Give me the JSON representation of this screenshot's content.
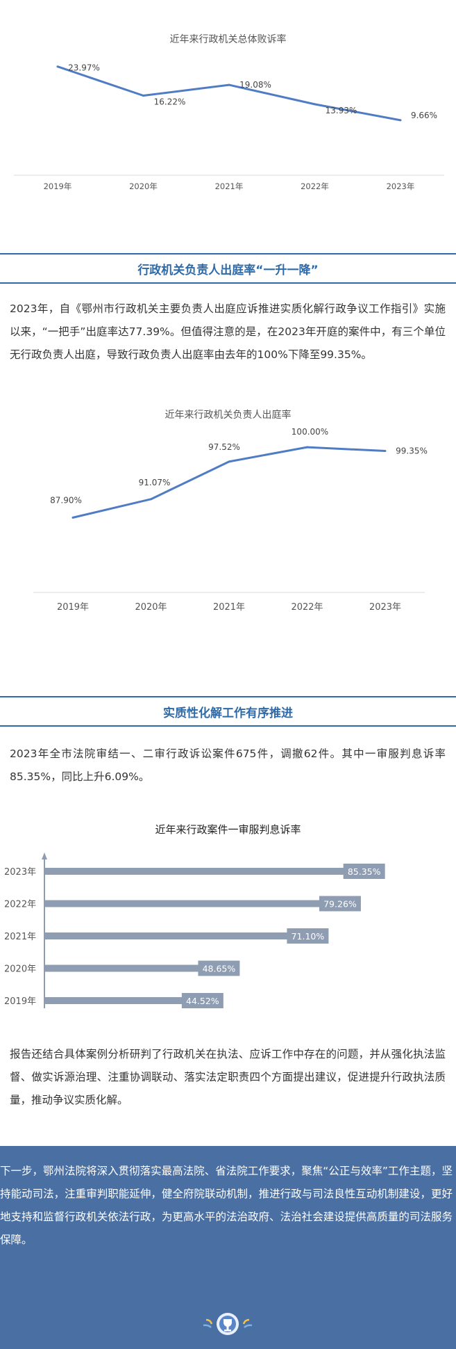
{
  "chart1": {
    "title": "近年来行政机关总体败诉率",
    "chart_data": {
      "type": "line",
      "title": "近年来行政机关总体败诉率",
      "categories": [
        "2019年",
        "2020年",
        "2021年",
        "2022年",
        "2023年"
      ],
      "values": [
        23.97,
        16.22,
        19.08,
        13.93,
        9.66
      ],
      "value_labels": [
        "23.97%",
        "16.22%",
        "19.08%",
        "13.93%",
        "9.66%"
      ],
      "ylim": [
        5,
        28
      ],
      "color": "#4f7cc4"
    }
  },
  "section1": {
    "heading": "行政机关负责人出庭率“一升一降”",
    "paragraph": "2023年，自《鄂州市行政机关主要负责人出庭应诉推进实质化解行政争议工作指引》实施以来，“一把手”出庭率达77.39%。但值得注意的是，在2023年开庭的案件中，有三个单位无行政负责人出庭，导致行政负责人出庭率由去年的100%下降至99.35%。"
  },
  "chart2": {
    "title": "近年来行政机关负责人出庭率",
    "chart_data": {
      "type": "line",
      "title": "近年来行政机关负责人出庭率",
      "categories": [
        "2019年",
        "2020年",
        "2021年",
        "2022年",
        "2023年"
      ],
      "values": [
        87.9,
        91.07,
        97.52,
        100.0,
        99.35
      ],
      "value_labels": [
        "87.90%",
        "91.07%",
        "97.52%",
        "100.00%",
        "99.35%"
      ],
      "ylim": [
        84,
        103
      ],
      "color": "#4f7cc4"
    }
  },
  "section2": {
    "heading": "实质性化解工作有序推进",
    "paragraph": "2023年全市法院审结一、二审行政诉讼案件675件，调撤62件。其中一审服判息诉率85.35%，同比上升6.09%。"
  },
  "chart3": {
    "title": "近年来行政案件一审服判息诉率",
    "chart_data": {
      "type": "bar",
      "orientation": "horizontal",
      "title": "近年来行政案件一审服判息诉率",
      "categories": [
        "2023年",
        "2022年",
        "2021年",
        "2020年",
        "2019年"
      ],
      "values": [
        85.35,
        79.26,
        71.1,
        48.65,
        44.52
      ],
      "value_labels": [
        "85.35%",
        "79.26%",
        "71.10%",
        "48.65%",
        "44.52%"
      ],
      "xlim": [
        0,
        95
      ],
      "color": "#8f9db3"
    }
  },
  "section3": {
    "paragraph": "报告还结合具体案例分析研判了行政机关在执法、应诉工作中存在的问题，并从强化执法监督、做实诉源治理、注重协调联动、落实法定职责四个方面提出建议，促进提升行政执法质量，推动争议实质化解。"
  },
  "footer": {
    "paragraph": "下一步，鄂州法院将深入贯彻落实最高法院、省法院工作要求，聚焦“公正与效率”工作主题，坚持能动司法，注重审判职能延伸，健全府院联动机制，推进行政与司法良性互动机制建设，更好地支持和监督行政机关依法行政，为更高水平的法治政府、法治社会建设提供高质量的司法服务保障。",
    "emblem_icon": "trophy-icon",
    "background": "#4a6fa3"
  }
}
